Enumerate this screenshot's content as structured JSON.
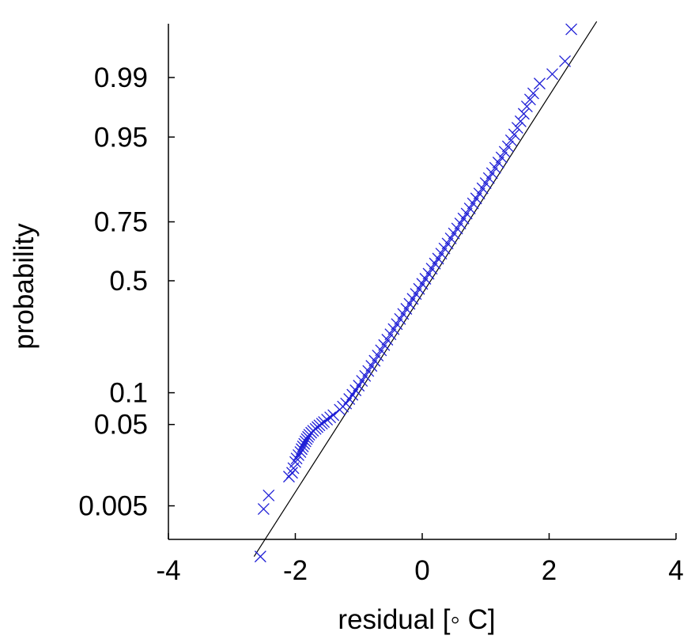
{
  "chart_data": {
    "type": "scatter",
    "title": "",
    "xlabel": "residual [◦ C]",
    "ylabel": "probability",
    "xlim": [
      -4,
      4
    ],
    "x_ticks": [
      -4,
      -2,
      0,
      2,
      4
    ],
    "y_scale": "normal-probability",
    "y_ticks": [
      0.005,
      0.05,
      0.1,
      0.5,
      0.75,
      0.95,
      0.99
    ],
    "y_tick_labels": [
      "0.005",
      "0.05",
      "0.1",
      "0.5",
      "0.75",
      "0.95",
      "0.99"
    ],
    "grid": false,
    "colors": {
      "markers": "#1f1fd6",
      "reference_line": "#000000",
      "axes": "#000000"
    },
    "series": [
      {
        "marker": "x",
        "x": [
          -2.55,
          -2.5,
          -2.42,
          -2.1,
          -2.05,
          -2.03,
          -2.0,
          -1.98,
          -1.95,
          -1.92,
          -1.9,
          -1.88,
          -1.86,
          -1.84,
          -1.82,
          -1.8,
          -1.78,
          -1.75,
          -1.72,
          -1.68,
          -1.65,
          -1.62,
          -1.58,
          -1.55,
          -1.5,
          -1.45,
          -1.4,
          -1.3,
          -1.25,
          -1.2,
          -1.15,
          -1.1,
          -1.05,
          -1.0,
          -0.95,
          -0.9,
          -0.85,
          -0.8,
          -0.75,
          -0.7,
          -0.65,
          -0.6,
          -0.55,
          -0.5,
          -0.45,
          -0.4,
          -0.35,
          -0.3,
          -0.25,
          -0.2,
          -0.15,
          -0.1,
          -0.05,
          0.0,
          0.05,
          0.1,
          0.15,
          0.2,
          0.25,
          0.3,
          0.35,
          0.4,
          0.45,
          0.5,
          0.55,
          0.6,
          0.65,
          0.7,
          0.75,
          0.8,
          0.85,
          0.9,
          0.95,
          1.0,
          1.05,
          1.1,
          1.15,
          1.2,
          1.25,
          1.3,
          1.35,
          1.4,
          1.45,
          1.5,
          1.55,
          1.6,
          1.65,
          1.7,
          1.75,
          1.85,
          2.05,
          2.25,
          2.35
        ],
        "y": [
          0.0008,
          0.0045,
          0.007,
          0.0125,
          0.014,
          0.016,
          0.019,
          0.021,
          0.023,
          0.025,
          0.027,
          0.029,
          0.031,
          0.033,
          0.035,
          0.037,
          0.039,
          0.041,
          0.043,
          0.045,
          0.047,
          0.049,
          0.051,
          0.053,
          0.056,
          0.059,
          0.062,
          0.07,
          0.075,
          0.08,
          0.088,
          0.096,
          0.105,
          0.115,
          0.126,
          0.138,
          0.151,
          0.165,
          0.18,
          0.196,
          0.213,
          0.231,
          0.25,
          0.27,
          0.29,
          0.31,
          0.331,
          0.352,
          0.374,
          0.396,
          0.418,
          0.44,
          0.463,
          0.486,
          0.509,
          0.532,
          0.555,
          0.578,
          0.6,
          0.622,
          0.644,
          0.665,
          0.686,
          0.706,
          0.725,
          0.744,
          0.762,
          0.779,
          0.796,
          0.812,
          0.827,
          0.841,
          0.855,
          0.868,
          0.88,
          0.891,
          0.902,
          0.912,
          0.921,
          0.93,
          0.938,
          0.946,
          0.953,
          0.96,
          0.966,
          0.972,
          0.977,
          0.981,
          0.984,
          0.988,
          0.991,
          0.994,
          0.998
        ]
      }
    ],
    "reference_line": {
      "x": [
        -2.65,
        2.75
      ],
      "y": [
        0.0008,
        0.9985
      ]
    }
  }
}
